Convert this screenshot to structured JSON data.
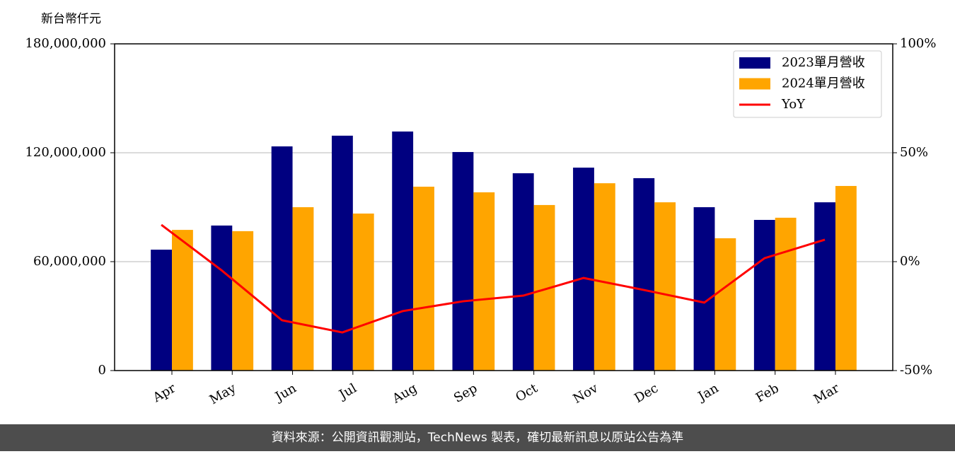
{
  "chart_data": {
    "type": "bar",
    "y_label": "新台幣仟元",
    "footer": "資料來源：公開資訊觀測站，TechNews 製表，確切最新訊息以原站公告為準",
    "categories": [
      "Apr",
      "May",
      "Jun",
      "Jul",
      "Aug",
      "Sep",
      "Oct",
      "Nov",
      "Dec",
      "Jan",
      "Feb",
      "Mar"
    ],
    "series": [
      {
        "name": "2023單月營收",
        "color": "#000080",
        "values": [
          66600000,
          79900000,
          123500000,
          129400000,
          131700000,
          120400000,
          108700000,
          111800000,
          106000000,
          90000000,
          83000000,
          92700000
        ]
      },
      {
        "name": "2024單月營收",
        "color": "#ffa500",
        "values": [
          77500000,
          76800000,
          90000000,
          86500000,
          101300000,
          98200000,
          91200000,
          103200000,
          92700000,
          72900000,
          84200000,
          101700000
        ]
      },
      {
        "name": "YoY",
        "color": "#ff0000",
        "axis": "y2",
        "type": "line",
        "values": [
          16.9,
          -4,
          -26.9,
          -32.5,
          -22.7,
          -18.2,
          -15.6,
          -7.5,
          -13.0,
          -18.8,
          1.6,
          10.1
        ]
      }
    ],
    "ylim": [
      0,
      180000000
    ],
    "yticks": [
      0,
      {
        "value": 60000000,
        "label": "60,000,000"
      },
      {
        "value": 120000000,
        "label": "120,000,000"
      },
      {
        "value": 180000000,
        "label": "180,000,000"
      }
    ],
    "y2lim": [
      -50,
      100
    ],
    "y2ticks": [
      {
        "value": -50,
        "label": "-50%"
      },
      {
        "value": 0,
        "label": "0%"
      },
      {
        "value": 50,
        "label": "50%"
      },
      {
        "value": 100,
        "label": "100%"
      }
    ],
    "grid": true,
    "legend": "upper right"
  }
}
